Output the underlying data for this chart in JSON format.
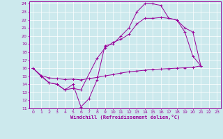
{
  "xlabel": "Windchill (Refroidissement éolien,°C)",
  "xlim": [
    -0.5,
    23.5
  ],
  "ylim": [
    11,
    24.3
  ],
  "yticks": [
    11,
    12,
    13,
    14,
    15,
    16,
    17,
    18,
    19,
    20,
    21,
    22,
    23,
    24
  ],
  "xticks": [
    0,
    1,
    2,
    3,
    4,
    5,
    6,
    7,
    8,
    9,
    10,
    11,
    12,
    13,
    14,
    15,
    16,
    17,
    18,
    19,
    20,
    21,
    22,
    23
  ],
  "bg_color": "#cce9ed",
  "line_color": "#990099",
  "line1_x": [
    0,
    1,
    2,
    3,
    4,
    5,
    6,
    7,
    8,
    9,
    10,
    11,
    12,
    13,
    14,
    15,
    16,
    17,
    18,
    19,
    20,
    21
  ],
  "line1_y": [
    16,
    15,
    14.2,
    14,
    13.3,
    14,
    11.2,
    12.2,
    14.5,
    18.8,
    19,
    20,
    21,
    23,
    24,
    24,
    23.8,
    22.2,
    22,
    20.5,
    17.5,
    16.3
  ],
  "line2_x": [
    0,
    2,
    3,
    4,
    5,
    6,
    8,
    9,
    10,
    11,
    12,
    13,
    14,
    15,
    16,
    17,
    18,
    19,
    20,
    21
  ],
  "line2_y": [
    16,
    14.2,
    14,
    13.3,
    13.5,
    13.3,
    17.2,
    18.5,
    19.2,
    19.6,
    20.2,
    21.5,
    22.2,
    22.2,
    22.3,
    22.2,
    22,
    21.0,
    20.5,
    16.3
  ],
  "line3_x": [
    0,
    1,
    2,
    3,
    4,
    5,
    6,
    7,
    8,
    9,
    10,
    11,
    12,
    13,
    14,
    15,
    16,
    17,
    18,
    19,
    20,
    21
  ],
  "line3_y": [
    16,
    15.1,
    14.8,
    14.7,
    14.6,
    14.65,
    14.55,
    14.7,
    14.85,
    15.05,
    15.2,
    15.4,
    15.55,
    15.65,
    15.75,
    15.85,
    15.9,
    15.95,
    16.0,
    16.05,
    16.1,
    16.3
  ]
}
